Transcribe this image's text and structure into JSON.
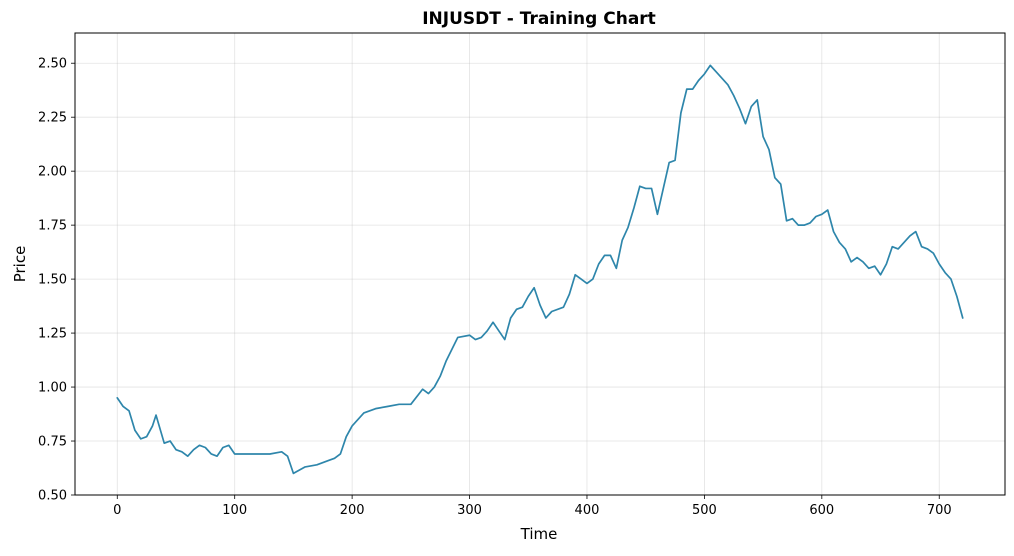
{
  "chart_data": {
    "type": "line",
    "title": "INJUSDT - Training Chart",
    "xlabel": "Time",
    "ylabel": "Price",
    "xlim": [
      -36,
      756
    ],
    "ylim": [
      0.5,
      2.64
    ],
    "x_ticks": [
      0,
      100,
      200,
      300,
      400,
      500,
      600,
      700
    ],
    "y_ticks": [
      0.5,
      0.75,
      1.0,
      1.25,
      1.5,
      1.75,
      2.0,
      2.25,
      2.5
    ],
    "x_tick_labels": [
      "0",
      "100",
      "200",
      "300",
      "400",
      "500",
      "600",
      "700"
    ],
    "y_tick_labels": [
      "0.50",
      "0.75",
      "1.00",
      "1.25",
      "1.50",
      "1.75",
      "2.00",
      "2.25",
      "2.50"
    ],
    "grid": true,
    "line_color": "#2e86ab",
    "series": [
      {
        "name": "",
        "x": [
          0,
          5,
          10,
          15,
          20,
          25,
          30,
          33,
          40,
          45,
          50,
          55,
          60,
          65,
          70,
          75,
          80,
          85,
          90,
          95,
          100,
          110,
          120,
          130,
          140,
          145,
          150,
          160,
          170,
          180,
          185,
          190,
          195,
          200,
          210,
          220,
          230,
          240,
          250,
          260,
          265,
          270,
          275,
          280,
          290,
          300,
          305,
          310,
          315,
          320,
          325,
          330,
          335,
          340,
          345,
          350,
          355,
          360,
          365,
          370,
          380,
          385,
          390,
          395,
          400,
          405,
          410,
          415,
          420,
          425,
          430,
          435,
          440,
          445,
          450,
          455,
          460,
          465,
          470,
          475,
          480,
          485,
          490,
          495,
          500,
          505,
          510,
          515,
          520,
          525,
          530,
          535,
          540,
          545,
          550,
          555,
          560,
          565,
          570,
          575,
          580,
          585,
          590,
          595,
          600,
          605,
          610,
          615,
          620,
          625,
          630,
          635,
          640,
          645,
          650,
          655,
          660,
          665,
          670,
          675,
          680,
          685,
          690,
          695,
          700,
          705,
          710,
          715,
          720
        ],
        "values": [
          0.95,
          0.91,
          0.89,
          0.8,
          0.76,
          0.77,
          0.82,
          0.87,
          0.74,
          0.75,
          0.71,
          0.7,
          0.68,
          0.71,
          0.73,
          0.72,
          0.69,
          0.68,
          0.72,
          0.73,
          0.69,
          0.69,
          0.69,
          0.69,
          0.7,
          0.68,
          0.6,
          0.63,
          0.64,
          0.66,
          0.67,
          0.69,
          0.77,
          0.82,
          0.88,
          0.9,
          0.91,
          0.92,
          0.92,
          0.99,
          0.97,
          1.0,
          1.05,
          1.12,
          1.23,
          1.24,
          1.22,
          1.23,
          1.26,
          1.3,
          1.26,
          1.22,
          1.32,
          1.36,
          1.37,
          1.42,
          1.46,
          1.38,
          1.32,
          1.35,
          1.37,
          1.43,
          1.52,
          1.5,
          1.48,
          1.5,
          1.57,
          1.61,
          1.61,
          1.55,
          1.68,
          1.74,
          1.83,
          1.93,
          1.92,
          1.92,
          1.8,
          1.92,
          2.04,
          2.05,
          2.27,
          2.38,
          2.38,
          2.42,
          2.45,
          2.49,
          2.46,
          2.43,
          2.4,
          2.35,
          2.29,
          2.22,
          2.3,
          2.33,
          2.16,
          2.1,
          1.97,
          1.94,
          1.77,
          1.78,
          1.75,
          1.75,
          1.76,
          1.79,
          1.8,
          1.82,
          1.72,
          1.67,
          1.64,
          1.58,
          1.6,
          1.58,
          1.55,
          1.56,
          1.52,
          1.57,
          1.65,
          1.64,
          1.67,
          1.7,
          1.72,
          1.65,
          1.64,
          1.62,
          1.57,
          1.53,
          1.5,
          1.42,
          1.32
        ]
      }
    ]
  }
}
